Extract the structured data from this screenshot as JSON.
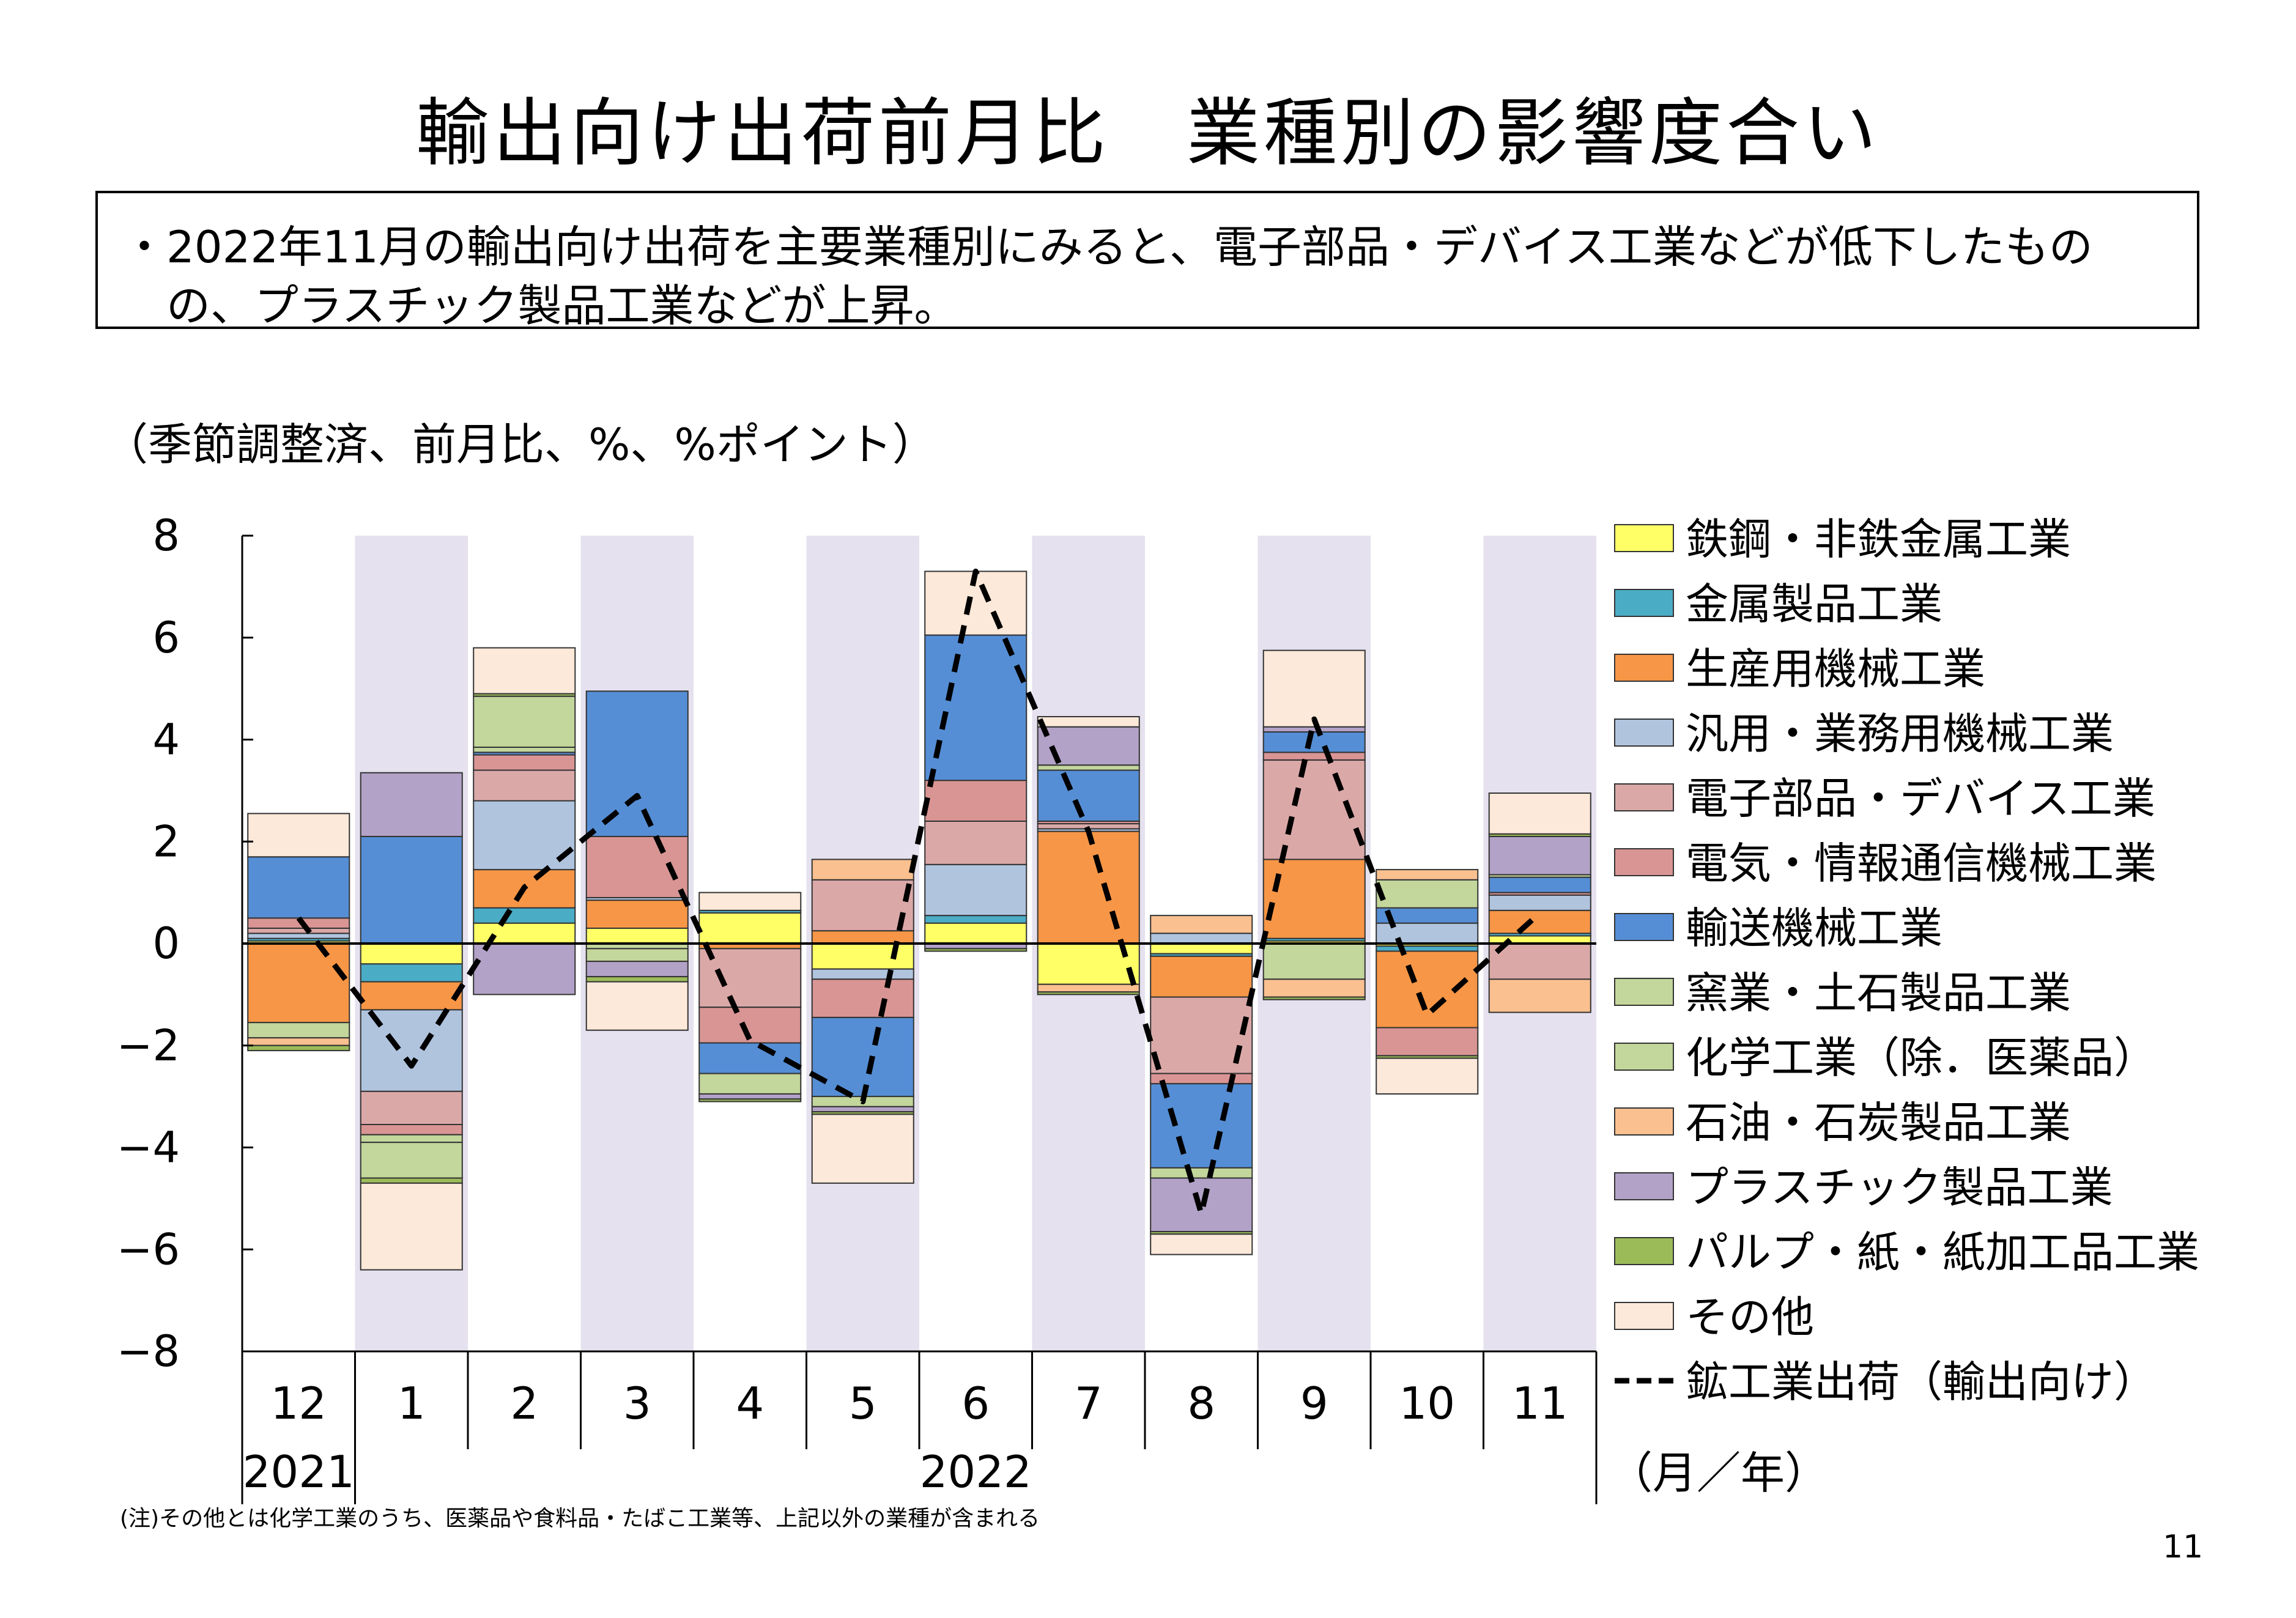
{
  "page": {
    "title": "輸出向け出荷前月比　業種別の影響度合い",
    "summary": [
      "・2022年11月の輸出向け出荷を主要業種別にみると、電子部品・デバイス工業などが低下したもの",
      "の、プラスチック製品工業などが上昇。"
    ],
    "unit_label": "（季節調整済、前月比、%、%ポイント）",
    "note": "(注)その他とは化学工業のうち、医薬品や食料品・たばこ工業等、上記以外の業種が含まれる",
    "page_number": "11"
  },
  "chart_data": {
    "type": "bar",
    "stacked": true,
    "categories": [
      "12",
      "1",
      "2",
      "3",
      "4",
      "5",
      "6",
      "7",
      "8",
      "9",
      "10",
      "11"
    ],
    "year_labels": [
      "2021",
      "2022"
    ],
    "x_unit_label": "（月／年）",
    "ylim": [
      -8,
      8
    ],
    "yticks": [
      8,
      6,
      4,
      2,
      0,
      -2,
      -4,
      -6,
      -8
    ],
    "ytick_labels": [
      "8",
      "6",
      "4",
      "2",
      "0",
      "−2",
      "−4",
      "−6",
      "−8"
    ],
    "shaded_columns": [
      1,
      3,
      5,
      7,
      9,
      11
    ],
    "shade_color": "#e5e1ee",
    "legend_position": "right",
    "series": [
      {
        "name": "鉄鋼・非鉄金属工業",
        "color": "#ffff66",
        "values": [
          0.05,
          -0.4,
          0.4,
          0.3,
          0.6,
          -0.5,
          0.4,
          -0.8,
          -0.2,
          0.05,
          -0.05,
          0.15
        ]
      },
      {
        "name": "金属製品工業",
        "color": "#4bacc6",
        "values": [
          0.05,
          -0.35,
          0.3,
          0.0,
          0.05,
          0.0,
          0.15,
          0.0,
          -0.05,
          0.05,
          -0.1,
          0.05
        ]
      },
      {
        "name": "生産用機械工業",
        "color": "#f79646",
        "values": [
          -1.55,
          -0.55,
          0.75,
          0.55,
          -0.1,
          0.25,
          0.0,
          2.2,
          -0.8,
          1.55,
          -1.5,
          0.45
        ]
      },
      {
        "name": "汎用・業務用機械工業",
        "color": "#b0c4de",
        "values": [
          0.1,
          -1.6,
          1.35,
          0.05,
          0.0,
          -0.2,
          1.0,
          0.05,
          0.2,
          0.0,
          0.4,
          0.3
        ]
      },
      {
        "name": "電子部品・デバイス工業",
        "color": "#dba8a8",
        "values": [
          0.1,
          -0.65,
          0.6,
          0.0,
          -1.15,
          1.0,
          0.85,
          0.1,
          -1.5,
          1.95,
          0.0,
          -0.7
        ]
      },
      {
        "name": "電気・情報通信機械工業",
        "color": "#d99594",
        "values": [
          0.2,
          -0.2,
          0.3,
          1.2,
          -0.7,
          -0.75,
          0.8,
          0.05,
          -0.2,
          0.15,
          -0.55,
          0.05
        ]
      },
      {
        "name": "輸送機械工業",
        "color": "#558ed5",
        "values": [
          1.2,
          2.1,
          0.05,
          2.85,
          -0.6,
          -1.55,
          2.85,
          1.0,
          -1.65,
          0.4,
          0.3,
          0.3
        ]
      },
      {
        "name": "窯業・土石製品工業",
        "color": "#c3d69b",
        "values": [
          0.0,
          -0.15,
          0.1,
          -0.1,
          0.0,
          0.0,
          0.0,
          0.0,
          0.0,
          0.0,
          0.0,
          0.0
        ]
      },
      {
        "name": "化学工業（除．医薬品）",
        "color": "#c3d69b",
        "values": [
          -0.3,
          -0.7,
          1.0,
          -0.25,
          -0.4,
          -0.2,
          0.0,
          0.1,
          -0.2,
          -0.7,
          0.55,
          0.05
        ]
      },
      {
        "name": "石油・石炭製品工業",
        "color": "#fac090",
        "values": [
          -0.15,
          0.0,
          0.0,
          0.0,
          0.0,
          0.4,
          0.0,
          -0.15,
          0.35,
          -0.35,
          0.2,
          -0.65
        ]
      },
      {
        "name": "プラスチック製品工業",
        "color": "#b3a2c7",
        "values": [
          0.0,
          1.25,
          -1.0,
          -0.3,
          -0.1,
          -0.1,
          -0.1,
          0.75,
          -1.05,
          0.1,
          0.0,
          0.75
        ]
      },
      {
        "name": "パルプ・紙・紙加工品工業",
        "color": "#9bbb59",
        "values": [
          -0.1,
          -0.1,
          0.05,
          -0.1,
          -0.05,
          -0.05,
          -0.05,
          -0.05,
          -0.05,
          -0.05,
          -0.05,
          0.05
        ]
      },
      {
        "name": "その他",
        "color": "#fde9d9",
        "values": [
          0.85,
          -1.7,
          0.9,
          -0.95,
          0.35,
          -1.35,
          1.25,
          0.2,
          -0.4,
          1.5,
          -0.7,
          0.8
        ]
      }
    ],
    "line_series": {
      "name": "鉱工業出荷（輸出向け）",
      "color": "#000000",
      "style": "dashed",
      "values": [
        0.5,
        -2.4,
        1.1,
        2.9,
        -1.9,
        -3.1,
        7.3,
        2.2,
        -5.3,
        4.4,
        -1.4,
        0.6
      ]
    }
  }
}
